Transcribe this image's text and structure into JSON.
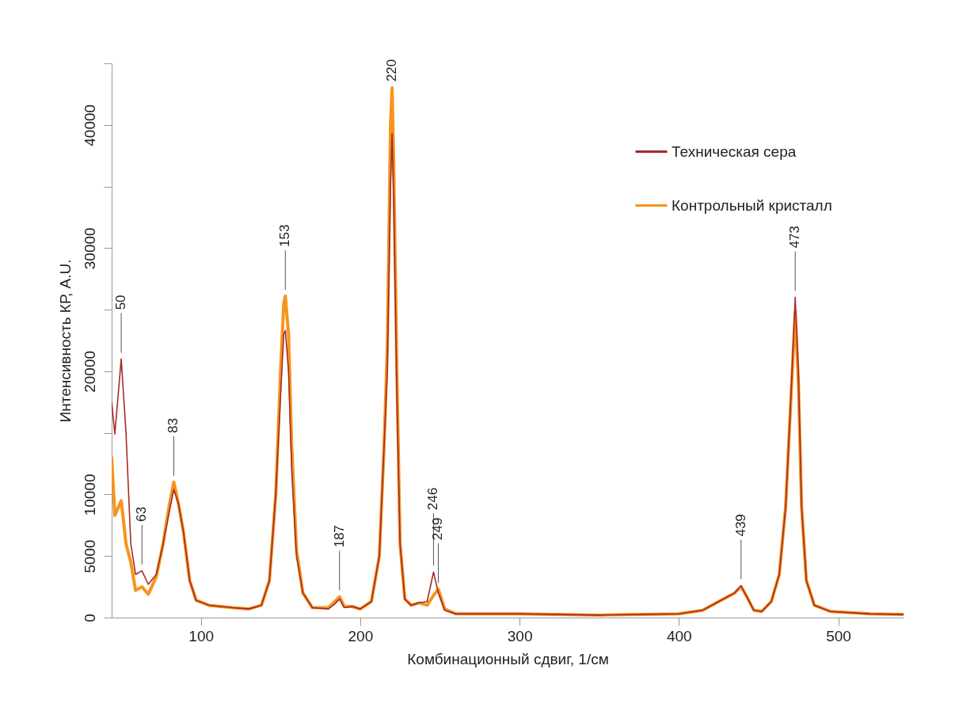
{
  "chart_data": {
    "type": "line",
    "xlabel": "Комбинационный сдвиг, 1/см",
    "ylabel": "Интенсивность КР, A.U.",
    "xlim": [
      44,
      541
    ],
    "xticks": [
      100,
      200,
      300,
      400,
      500
    ],
    "ylim": [
      0,
      45000
    ],
    "yticks": [
      0,
      5000,
      10000,
      {
        "value": 15000,
        "label": null
      },
      20000,
      {
        "value": 25000,
        "label": null
      },
      30000,
      {
        "value": 35000,
        "label": null
      },
      40000,
      {
        "value": 45000,
        "label": null
      }
    ],
    "grid": false,
    "legend": "top right",
    "marker": "none",
    "line_style": "solid",
    "x": [
      44,
      46,
      50,
      53,
      56,
      59,
      63,
      67,
      72,
      76,
      80,
      83,
      86,
      89,
      93,
      97,
      105,
      120,
      130,
      138,
      143,
      147,
      150,
      152,
      153,
      155,
      157,
      160,
      164,
      170,
      180,
      184,
      187,
      190,
      195,
      200,
      207,
      212,
      215,
      217,
      219,
      220,
      221,
      223,
      225,
      228,
      232,
      237,
      242,
      246,
      249,
      253,
      260,
      300,
      350,
      400,
      415,
      425,
      435,
      439,
      443,
      447,
      452,
      458,
      463,
      467,
      470,
      473,
      475,
      477,
      480,
      485,
      495,
      520,
      541
    ],
    "series": [
      {
        "name": "Техническая сера",
        "color": "#a52a2a",
        "values": [
          17500,
          14900,
          21000,
          15000,
          6000,
          3500,
          3800,
          2700,
          3500,
          5800,
          8500,
          10400,
          9200,
          7000,
          3000,
          1400,
          1000,
          800,
          700,
          1000,
          3000,
          10000,
          18000,
          23000,
          23300,
          20000,
          12000,
          5000,
          2000,
          800,
          700,
          1100,
          1500,
          800,
          900,
          700,
          1300,
          5000,
          14000,
          20000,
          35000,
          39300,
          34000,
          18000,
          6000,
          1500,
          1000,
          1200,
          1300,
          3700,
          2000,
          600,
          300,
          300,
          200,
          300,
          600,
          1300,
          2000,
          2600,
          1600,
          600,
          500,
          1300,
          3500,
          9000,
          17000,
          26000,
          20000,
          9000,
          3000,
          1000,
          500,
          300,
          250
        ]
      },
      {
        "name": "Контрольный кристалл",
        "color": "#f7941d",
        "values": [
          13000,
          8300,
          9500,
          6000,
          4500,
          2200,
          2500,
          1900,
          3300,
          5800,
          9000,
          11000,
          9200,
          7000,
          3000,
          1400,
          1000,
          800,
          700,
          1000,
          3000,
          10000,
          20000,
          25500,
          26100,
          23000,
          14000,
          5500,
          2000,
          800,
          800,
          1300,
          1700,
          900,
          900,
          700,
          1300,
          5000,
          14000,
          22000,
          40000,
          43000,
          37000,
          20000,
          6000,
          1500,
          1000,
          1200,
          1000,
          1800,
          2300,
          700,
          300,
          300,
          200,
          300,
          600,
          1300,
          2000,
          2500,
          1600,
          600,
          500,
          1300,
          3500,
          9000,
          17000,
          24800,
          19000,
          9000,
          3000,
          1000,
          500,
          300,
          250
        ]
      }
    ],
    "annotations": [
      {
        "text": "50",
        "x": 50,
        "y": 21000
      },
      {
        "text": "63",
        "x": 63,
        "y": 3800
      },
      {
        "text": "83",
        "x": 83,
        "y": 11000
      },
      {
        "text": "153",
        "x": 153,
        "y": 26100
      },
      {
        "text": "187",
        "x": 187,
        "y": 1700
      },
      {
        "text": "220",
        "x": 220,
        "y": 43000
      },
      {
        "text": "246",
        "x": 246,
        "y": 3700
      },
      {
        "text": "249",
        "x": 249,
        "y": 2300
      },
      {
        "text": "439",
        "x": 439,
        "y": 2600
      },
      {
        "text": "473",
        "x": 473,
        "y": 26000
      }
    ]
  }
}
